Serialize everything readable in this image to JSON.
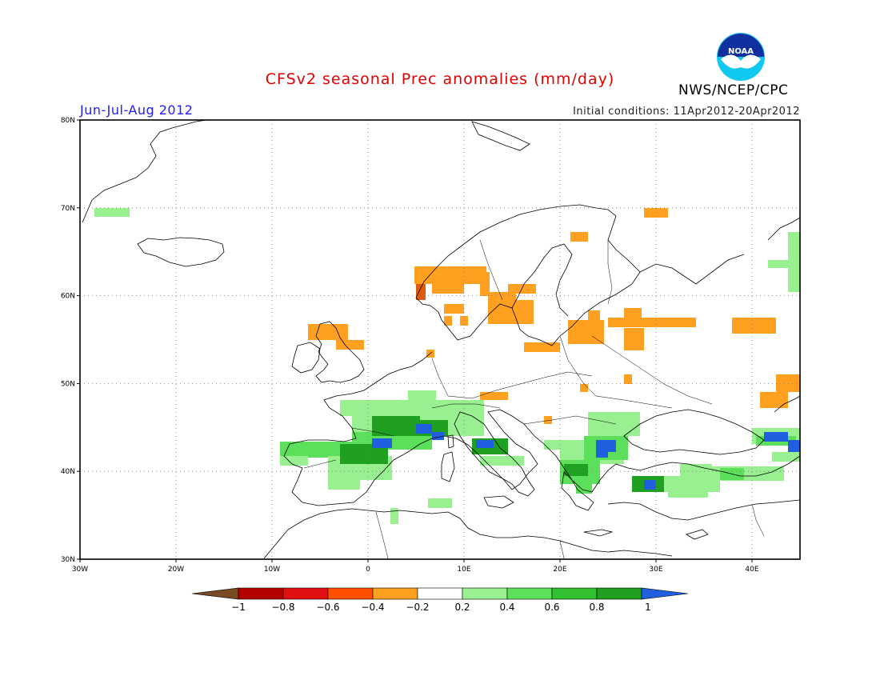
{
  "header": {
    "title": "CFSv2 seasonal Prec anomalies (mm/day)",
    "season": "Jun-Jul-Aug 2012",
    "initial_conditions": "Initial conditions: 11Apr2012-20Apr2012",
    "agency": "NWS/NCEP/CPC",
    "logo_text": "NOAA"
  },
  "axes": {
    "lat_ticks": [
      "80N",
      "70N",
      "60N",
      "50N",
      "40N",
      "30N"
    ],
    "lon_ticks": [
      "30W",
      "20W",
      "10W",
      "0",
      "10E",
      "20E",
      "30E",
      "40E"
    ]
  },
  "colorbar": {
    "labels": [
      "-1",
      "-0.8",
      "-0.6",
      "-0.4",
      "-0.2",
      "0.2",
      "0.4",
      "0.6",
      "0.8",
      "1"
    ],
    "colors": [
      "#7a4a24",
      "#b40000",
      "#e01010",
      "#ff5000",
      "#ffa020",
      "#ffffff",
      "#98f090",
      "#5ce05c",
      "#30c030",
      "#20a020",
      "#2060e0"
    ]
  },
  "anomaly_colors": {
    "dry_strong": "#e05a10",
    "dry": "#ffa020",
    "wet_light": "#98f090",
    "wet": "#5ce05c",
    "wet_strong": "#20a020",
    "wet_max": "#2060e0"
  }
}
